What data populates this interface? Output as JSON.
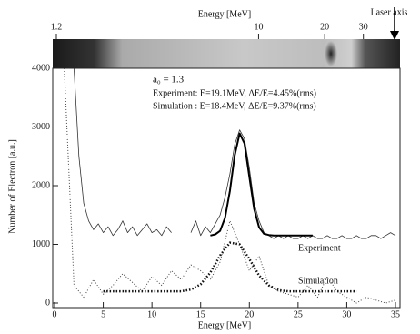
{
  "chart_data": {
    "type": "line",
    "xlabel": "Energy [MeV]",
    "ylabel": "Number of Electron [a.u.]",
    "xlim": [
      0,
      35
    ],
    "xticks": [
      0,
      5,
      10,
      15,
      20,
      25,
      30,
      35
    ],
    "ylim": [
      0,
      4000
    ],
    "yticks": [
      0,
      1000,
      2000,
      3000,
      4000
    ],
    "x2label": "Energy [MeV]",
    "x2scale": "log",
    "x2lim": [
      1.2,
      42
    ],
    "x2ticks": [
      1.2,
      10,
      20,
      30
    ],
    "laser_label": "Laser axis",
    "annotations": [
      "a₀ = 1.3",
      "Experiment: E=19.1MeV, ΔE/E=4.45%(rms)",
      "Simulation : E=18.4MeV, ΔE/E=9.37%(rms)"
    ],
    "series": [
      {
        "name": "Experiment",
        "color": "#333333",
        "style": "solid",
        "width": 0.8,
        "x": [
          2,
          2.5,
          3,
          3.5,
          4,
          4.5,
          5,
          5.5,
          6,
          6.5,
          7,
          7.5,
          8,
          8.5,
          9,
          9.5,
          10,
          10.5,
          11,
          11.5,
          12,
          12.5,
          13,
          13.5,
          14,
          14.5,
          15,
          15.5,
          16,
          16.5,
          17,
          17.5,
          18,
          18.5,
          19,
          19.5,
          20,
          20.5,
          21,
          21.5,
          22,
          22.5,
          23,
          23.5,
          24,
          24.5,
          25,
          25.5,
          26,
          26.5,
          27,
          27.5,
          28,
          28.5,
          29,
          29.5,
          30,
          30.5,
          31,
          31.5,
          32,
          32.5,
          33,
          33.5,
          34,
          34.5,
          35
        ],
        "values": [
          4000,
          2500,
          1700,
          1400,
          1250,
          1350,
          1200,
          1300,
          1150,
          1250,
          1400,
          1200,
          1300,
          1150,
          1250,
          1350,
          1200,
          1250,
          1150,
          1300,
          1200,
          null,
          null,
          null,
          1200,
          1400,
          1150,
          1300,
          1200,
          1350,
          1500,
          1800,
          2200,
          2700,
          2950,
          2800,
          2300,
          1700,
          1400,
          1200,
          1150,
          1100,
          1150,
          1100,
          1150,
          1100,
          1100,
          1150,
          1100,
          1150,
          1100,
          1100,
          1150,
          1100,
          1100,
          1150,
          1100,
          1100,
          1150,
          1100,
          1100,
          1150,
          1150,
          1100,
          1150,
          1200,
          1150
        ]
      },
      {
        "color": "#000000",
        "style": "solid",
        "width": 2,
        "x": [
          16,
          16.5,
          17,
          17.5,
          18,
          18.5,
          19,
          19.5,
          20,
          20.5,
          21,
          21.5,
          22,
          22.5,
          23,
          23.5,
          24,
          24.5,
          25,
          25.5,
          26,
          26.5
        ],
        "values": [
          1150,
          1170,
          1230,
          1450,
          1910,
          2520,
          2890,
          2720,
          2150,
          1600,
          1290,
          1180,
          1160,
          1150,
          1150,
          1150,
          1150,
          1150,
          1150,
          1150,
          1150,
          1150
        ]
      },
      {
        "name": "Simulation",
        "color": "#444444",
        "style": "dotted",
        "width": 1,
        "x": [
          1,
          2,
          3,
          4,
          5,
          6,
          7,
          8,
          9,
          10,
          11,
          12,
          13,
          14,
          15,
          16,
          17,
          18,
          19,
          20,
          21,
          22,
          23,
          24,
          25,
          26,
          27,
          28,
          29,
          30,
          31,
          32,
          33,
          34,
          35
        ],
        "values": [
          4000,
          300,
          100,
          400,
          150,
          300,
          500,
          350,
          200,
          450,
          300,
          550,
          400,
          650,
          550,
          400,
          700,
          1400,
          1000,
          550,
          800,
          300,
          200,
          150,
          100,
          300,
          100,
          450,
          200,
          100,
          0,
          100,
          50,
          0,
          50
        ]
      },
      {
        "color": "#111111",
        "style": "dotted",
        "width": 2.5,
        "x": [
          5,
          6,
          7,
          8,
          9,
          10,
          11,
          12,
          13,
          14,
          15,
          16,
          17,
          18,
          19,
          20,
          21,
          22,
          23,
          24,
          25,
          26,
          27,
          28,
          29,
          30,
          31
        ],
        "values": [
          200,
          200,
          200,
          200,
          200,
          200,
          200,
          200,
          200,
          230,
          320,
          520,
          810,
          1030,
          1000,
          750,
          470,
          300,
          220,
          200,
          200,
          200,
          200,
          200,
          200,
          200,
          200
        ]
      }
    ]
  }
}
